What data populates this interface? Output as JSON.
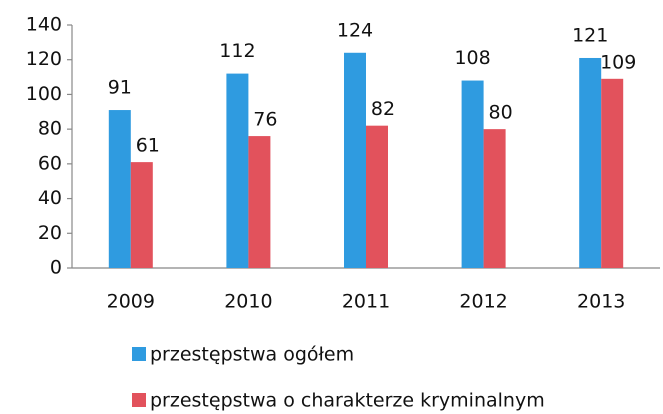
{
  "chart_data": {
    "type": "bar",
    "categories": [
      "2009",
      "2010",
      "2011",
      "2012",
      "2013"
    ],
    "series": [
      {
        "name": "przestępstwa ogółem",
        "color": "#2f9be0",
        "values": [
          91,
          112,
          124,
          108,
          121
        ]
      },
      {
        "name": "przestępstwa o charakterze kryminalnym",
        "color": "#e2525c",
        "values": [
          61,
          76,
          82,
          80,
          109
        ]
      }
    ],
    "ylim": [
      0,
      140
    ],
    "yticks": [
      0,
      20,
      40,
      60,
      80,
      100,
      120,
      140
    ],
    "grid": false,
    "legend": "bottom"
  }
}
